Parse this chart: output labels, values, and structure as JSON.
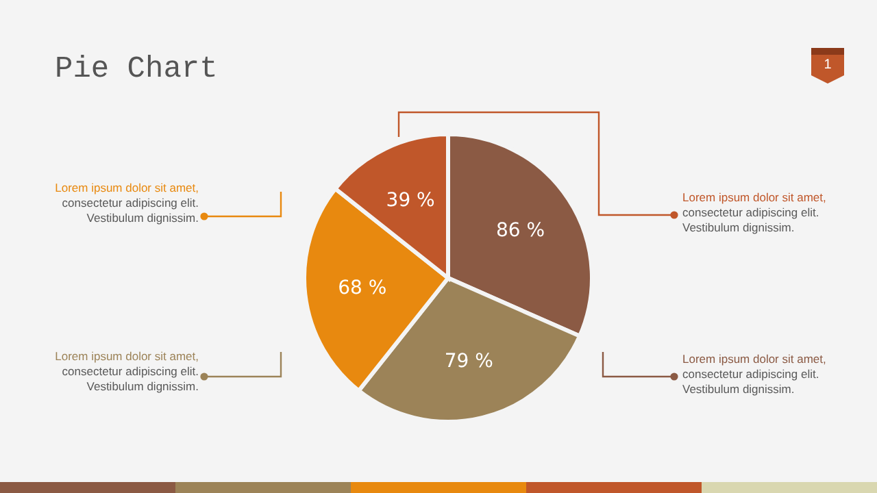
{
  "chart_data": {
    "type": "pie",
    "title": "Pie Chart",
    "categories": [
      null,
      null,
      null,
      null
    ],
    "values": [
      86,
      79,
      68,
      39
    ],
    "value_labels": [
      "86 %",
      "79 %",
      "68 %",
      "39 %"
    ],
    "colors": [
      "#8b5a44",
      "#9c8358",
      "#e8890f",
      "#c0572a"
    ],
    "annotations": [
      "Lorem ipsum dolor sit amet,\nconsectetur adipiscing elit.\nVestibulum dignissim.",
      "Lorem ipsum dolor sit amet,\nconsectetur adipiscing elit.\nVestibulum dignissim.",
      "Lorem ipsum dolor sit amet,\nconsectetur adipiscing elit.\nVestibulum dignissim.",
      "Lorem ipsum dolor sit amet,\nconsectetur adipiscing elit.\nVestibulum dignissim.",
      "1"
    ]
  }
}
